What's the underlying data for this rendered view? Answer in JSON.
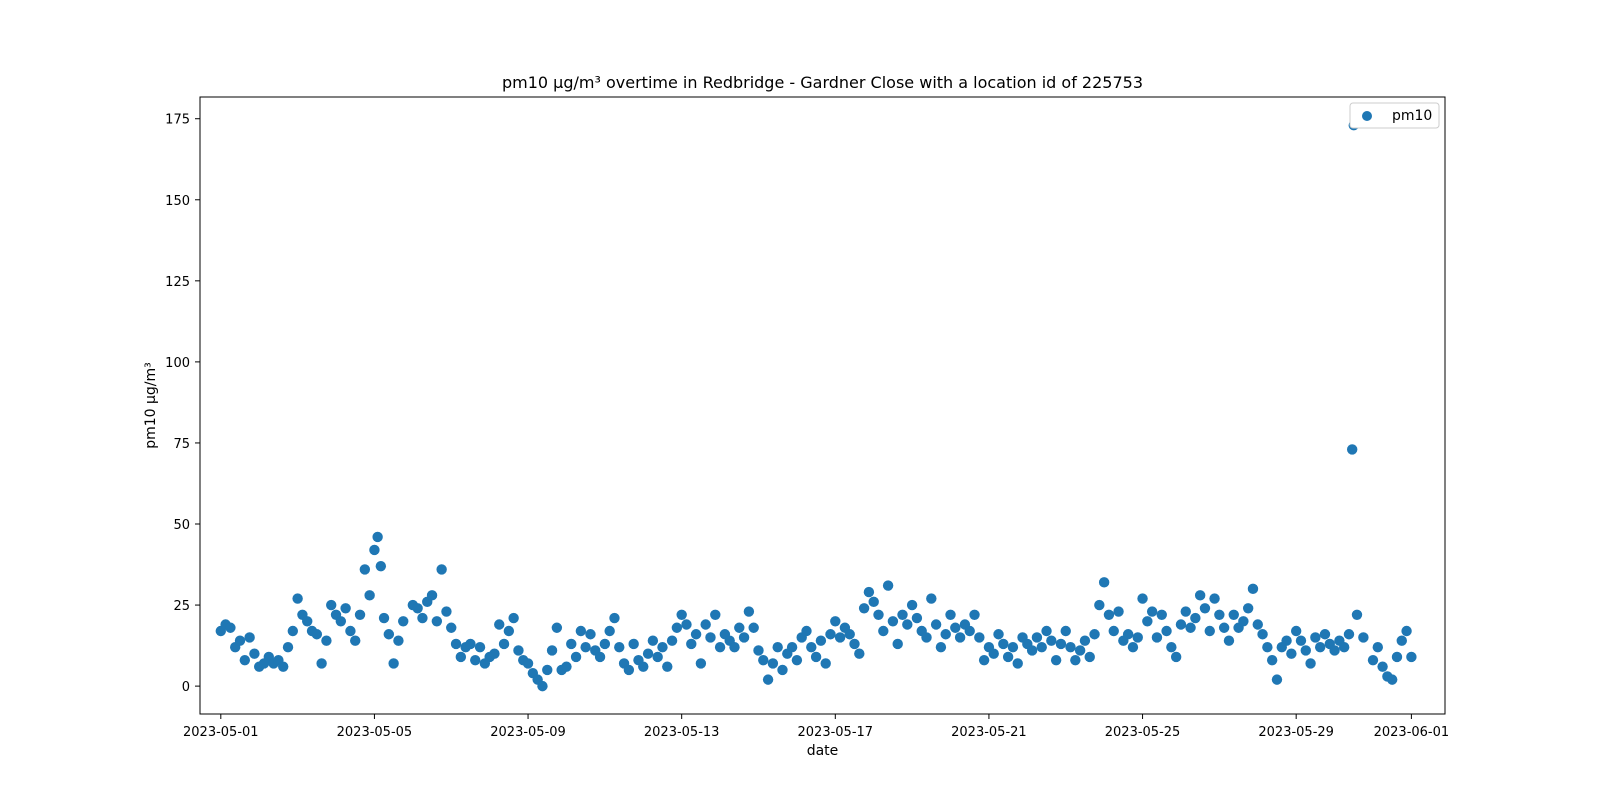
{
  "chart_data": {
    "type": "scatter",
    "title": "pm10 µg/m³ overtime in Redbridge - Gardner Close with a location id of 225753",
    "xlabel": "date",
    "ylabel": "pm10 µg/m³",
    "x_axis_type": "date",
    "xlim": [
      "2023-04-30T11:00",
      "2023-06-01T21:00"
    ],
    "ylim": [
      -8.6,
      181.7
    ],
    "x_ticks": [
      "2023-05-01",
      "2023-05-05",
      "2023-05-09",
      "2023-05-13",
      "2023-05-17",
      "2023-05-21",
      "2023-05-25",
      "2023-05-29",
      "2023-06-01"
    ],
    "y_ticks": [
      0,
      25,
      50,
      75,
      100,
      125,
      150,
      175
    ],
    "grid": false,
    "legend_position": "top-right",
    "series": [
      {
        "name": "pm10",
        "color": "#1f77b4",
        "marker": "circle",
        "points": [
          [
            "2023-05-01T00:00",
            17
          ],
          [
            "2023-05-01T03:00",
            19
          ],
          [
            "2023-05-01T06:00",
            18
          ],
          [
            "2023-05-01T09:00",
            12
          ],
          [
            "2023-05-01T12:00",
            14
          ],
          [
            "2023-05-01T15:00",
            8
          ],
          [
            "2023-05-01T18:00",
            15
          ],
          [
            "2023-05-01T21:00",
            10
          ],
          [
            "2023-05-02T00:00",
            6
          ],
          [
            "2023-05-02T03:00",
            7
          ],
          [
            "2023-05-02T06:00",
            9
          ],
          [
            "2023-05-02T09:00",
            7
          ],
          [
            "2023-05-02T12:00",
            8
          ],
          [
            "2023-05-02T15:00",
            6
          ],
          [
            "2023-05-02T18:00",
            12
          ],
          [
            "2023-05-02T21:00",
            17
          ],
          [
            "2023-05-03T00:00",
            27
          ],
          [
            "2023-05-03T03:00",
            22
          ],
          [
            "2023-05-03T06:00",
            20
          ],
          [
            "2023-05-03T09:00",
            17
          ],
          [
            "2023-05-03T12:00",
            16
          ],
          [
            "2023-05-03T15:00",
            7
          ],
          [
            "2023-05-03T18:00",
            14
          ],
          [
            "2023-05-03T21:00",
            25
          ],
          [
            "2023-05-04T00:00",
            22
          ],
          [
            "2023-05-04T03:00",
            20
          ],
          [
            "2023-05-04T06:00",
            24
          ],
          [
            "2023-05-04T09:00",
            17
          ],
          [
            "2023-05-04T12:00",
            14
          ],
          [
            "2023-05-04T15:00",
            22
          ],
          [
            "2023-05-04T18:00",
            36
          ],
          [
            "2023-05-04T21:00",
            28
          ],
          [
            "2023-05-05T00:00",
            42
          ],
          [
            "2023-05-05T02:00",
            46
          ],
          [
            "2023-05-05T04:00",
            37
          ],
          [
            "2023-05-05T06:00",
            21
          ],
          [
            "2023-05-05T09:00",
            16
          ],
          [
            "2023-05-05T12:00",
            7
          ],
          [
            "2023-05-05T15:00",
            14
          ],
          [
            "2023-05-05T18:00",
            20
          ],
          [
            "2023-05-06T00:00",
            25
          ],
          [
            "2023-05-06T03:00",
            24
          ],
          [
            "2023-05-06T06:00",
            21
          ],
          [
            "2023-05-06T09:00",
            26
          ],
          [
            "2023-05-06T12:00",
            28
          ],
          [
            "2023-05-06T15:00",
            20
          ],
          [
            "2023-05-06T18:00",
            36
          ],
          [
            "2023-05-06T21:00",
            23
          ],
          [
            "2023-05-07T00:00",
            18
          ],
          [
            "2023-05-07T03:00",
            13
          ],
          [
            "2023-05-07T06:00",
            9
          ],
          [
            "2023-05-07T09:00",
            12
          ],
          [
            "2023-05-07T12:00",
            13
          ],
          [
            "2023-05-07T15:00",
            8
          ],
          [
            "2023-05-07T18:00",
            12
          ],
          [
            "2023-05-07T21:00",
            7
          ],
          [
            "2023-05-08T00:00",
            9
          ],
          [
            "2023-05-08T03:00",
            10
          ],
          [
            "2023-05-08T06:00",
            19
          ],
          [
            "2023-05-08T09:00",
            13
          ],
          [
            "2023-05-08T12:00",
            17
          ],
          [
            "2023-05-08T15:00",
            21
          ],
          [
            "2023-05-08T18:00",
            11
          ],
          [
            "2023-05-08T21:00",
            8
          ],
          [
            "2023-05-09T00:00",
            7
          ],
          [
            "2023-05-09T03:00",
            4
          ],
          [
            "2023-05-09T06:00",
            2
          ],
          [
            "2023-05-09T09:00",
            0
          ],
          [
            "2023-05-09T12:00",
            5
          ],
          [
            "2023-05-09T15:00",
            11
          ],
          [
            "2023-05-09T18:00",
            18
          ],
          [
            "2023-05-09T21:00",
            5
          ],
          [
            "2023-05-10T00:00",
            6
          ],
          [
            "2023-05-10T03:00",
            13
          ],
          [
            "2023-05-10T06:00",
            9
          ],
          [
            "2023-05-10T09:00",
            17
          ],
          [
            "2023-05-10T12:00",
            12
          ],
          [
            "2023-05-10T15:00",
            16
          ],
          [
            "2023-05-10T18:00",
            11
          ],
          [
            "2023-05-10T21:00",
            9
          ],
          [
            "2023-05-11T00:00",
            13
          ],
          [
            "2023-05-11T03:00",
            17
          ],
          [
            "2023-05-11T06:00",
            21
          ],
          [
            "2023-05-11T09:00",
            12
          ],
          [
            "2023-05-11T12:00",
            7
          ],
          [
            "2023-05-11T15:00",
            5
          ],
          [
            "2023-05-11T18:00",
            13
          ],
          [
            "2023-05-11T21:00",
            8
          ],
          [
            "2023-05-12T00:00",
            6
          ],
          [
            "2023-05-12T03:00",
            10
          ],
          [
            "2023-05-12T06:00",
            14
          ],
          [
            "2023-05-12T09:00",
            9
          ],
          [
            "2023-05-12T12:00",
            12
          ],
          [
            "2023-05-12T15:00",
            6
          ],
          [
            "2023-05-12T18:00",
            14
          ],
          [
            "2023-05-12T21:00",
            18
          ],
          [
            "2023-05-13T00:00",
            22
          ],
          [
            "2023-05-13T03:00",
            19
          ],
          [
            "2023-05-13T06:00",
            13
          ],
          [
            "2023-05-13T09:00",
            16
          ],
          [
            "2023-05-13T12:00",
            7
          ],
          [
            "2023-05-13T15:00",
            19
          ],
          [
            "2023-05-13T18:00",
            15
          ],
          [
            "2023-05-13T21:00",
            22
          ],
          [
            "2023-05-14T00:00",
            12
          ],
          [
            "2023-05-14T03:00",
            16
          ],
          [
            "2023-05-14T06:00",
            14
          ],
          [
            "2023-05-14T09:00",
            12
          ],
          [
            "2023-05-14T12:00",
            18
          ],
          [
            "2023-05-14T15:00",
            15
          ],
          [
            "2023-05-14T18:00",
            23
          ],
          [
            "2023-05-14T21:00",
            18
          ],
          [
            "2023-05-15T00:00",
            11
          ],
          [
            "2023-05-15T03:00",
            8
          ],
          [
            "2023-05-15T06:00",
            2
          ],
          [
            "2023-05-15T09:00",
            7
          ],
          [
            "2023-05-15T12:00",
            12
          ],
          [
            "2023-05-15T15:00",
            5
          ],
          [
            "2023-05-15T18:00",
            10
          ],
          [
            "2023-05-15T21:00",
            12
          ],
          [
            "2023-05-16T00:00",
            8
          ],
          [
            "2023-05-16T03:00",
            15
          ],
          [
            "2023-05-16T06:00",
            17
          ],
          [
            "2023-05-16T09:00",
            12
          ],
          [
            "2023-05-16T12:00",
            9
          ],
          [
            "2023-05-16T15:00",
            14
          ],
          [
            "2023-05-16T18:00",
            7
          ],
          [
            "2023-05-16T21:00",
            16
          ],
          [
            "2023-05-17T00:00",
            20
          ],
          [
            "2023-05-17T03:00",
            15
          ],
          [
            "2023-05-17T06:00",
            18
          ],
          [
            "2023-05-17T09:00",
            16
          ],
          [
            "2023-05-17T12:00",
            13
          ],
          [
            "2023-05-17T15:00",
            10
          ],
          [
            "2023-05-17T18:00",
            24
          ],
          [
            "2023-05-17T21:00",
            29
          ],
          [
            "2023-05-18T00:00",
            26
          ],
          [
            "2023-05-18T03:00",
            22
          ],
          [
            "2023-05-18T06:00",
            17
          ],
          [
            "2023-05-18T09:00",
            31
          ],
          [
            "2023-05-18T12:00",
            20
          ],
          [
            "2023-05-18T15:00",
            13
          ],
          [
            "2023-05-18T18:00",
            22
          ],
          [
            "2023-05-18T21:00",
            19
          ],
          [
            "2023-05-19T00:00",
            25
          ],
          [
            "2023-05-19T03:00",
            21
          ],
          [
            "2023-05-19T06:00",
            17
          ],
          [
            "2023-05-19T09:00",
            15
          ],
          [
            "2023-05-19T12:00",
            27
          ],
          [
            "2023-05-19T15:00",
            19
          ],
          [
            "2023-05-19T18:00",
            12
          ],
          [
            "2023-05-19T21:00",
            16
          ],
          [
            "2023-05-20T00:00",
            22
          ],
          [
            "2023-05-20T03:00",
            18
          ],
          [
            "2023-05-20T06:00",
            15
          ],
          [
            "2023-05-20T09:00",
            19
          ],
          [
            "2023-05-20T12:00",
            17
          ],
          [
            "2023-05-20T15:00",
            22
          ],
          [
            "2023-05-20T18:00",
            15
          ],
          [
            "2023-05-20T21:00",
            8
          ],
          [
            "2023-05-21T00:00",
            12
          ],
          [
            "2023-05-21T03:00",
            10
          ],
          [
            "2023-05-21T06:00",
            16
          ],
          [
            "2023-05-21T09:00",
            13
          ],
          [
            "2023-05-21T12:00",
            9
          ],
          [
            "2023-05-21T15:00",
            12
          ],
          [
            "2023-05-21T18:00",
            7
          ],
          [
            "2023-05-21T21:00",
            15
          ],
          [
            "2023-05-22T00:00",
            13
          ],
          [
            "2023-05-22T03:00",
            11
          ],
          [
            "2023-05-22T06:00",
            15
          ],
          [
            "2023-05-22T09:00",
            12
          ],
          [
            "2023-05-22T12:00",
            17
          ],
          [
            "2023-05-22T15:00",
            14
          ],
          [
            "2023-05-22T18:00",
            8
          ],
          [
            "2023-05-22T21:00",
            13
          ],
          [
            "2023-05-23T00:00",
            17
          ],
          [
            "2023-05-23T03:00",
            12
          ],
          [
            "2023-05-23T06:00",
            8
          ],
          [
            "2023-05-23T09:00",
            11
          ],
          [
            "2023-05-23T12:00",
            14
          ],
          [
            "2023-05-23T15:00",
            9
          ],
          [
            "2023-05-23T18:00",
            16
          ],
          [
            "2023-05-23T21:00",
            25
          ],
          [
            "2023-05-24T00:00",
            32
          ],
          [
            "2023-05-24T03:00",
            22
          ],
          [
            "2023-05-24T06:00",
            17
          ],
          [
            "2023-05-24T09:00",
            23
          ],
          [
            "2023-05-24T12:00",
            14
          ],
          [
            "2023-05-24T15:00",
            16
          ],
          [
            "2023-05-24T18:00",
            12
          ],
          [
            "2023-05-24T21:00",
            15
          ],
          [
            "2023-05-25T00:00",
            27
          ],
          [
            "2023-05-25T03:00",
            20
          ],
          [
            "2023-05-25T06:00",
            23
          ],
          [
            "2023-05-25T09:00",
            15
          ],
          [
            "2023-05-25T12:00",
            22
          ],
          [
            "2023-05-25T15:00",
            17
          ],
          [
            "2023-05-25T18:00",
            12
          ],
          [
            "2023-05-25T21:00",
            9
          ],
          [
            "2023-05-26T00:00",
            19
          ],
          [
            "2023-05-26T03:00",
            23
          ],
          [
            "2023-05-26T06:00",
            18
          ],
          [
            "2023-05-26T09:00",
            21
          ],
          [
            "2023-05-26T12:00",
            28
          ],
          [
            "2023-05-26T15:00",
            24
          ],
          [
            "2023-05-26T18:00",
            17
          ],
          [
            "2023-05-26T21:00",
            27
          ],
          [
            "2023-05-27T00:00",
            22
          ],
          [
            "2023-05-27T03:00",
            18
          ],
          [
            "2023-05-27T06:00",
            14
          ],
          [
            "2023-05-27T09:00",
            22
          ],
          [
            "2023-05-27T12:00",
            18
          ],
          [
            "2023-05-27T15:00",
            20
          ],
          [
            "2023-05-27T18:00",
            24
          ],
          [
            "2023-05-27T21:00",
            30
          ],
          [
            "2023-05-28T00:00",
            19
          ],
          [
            "2023-05-28T03:00",
            16
          ],
          [
            "2023-05-28T06:00",
            12
          ],
          [
            "2023-05-28T09:00",
            8
          ],
          [
            "2023-05-28T12:00",
            2
          ],
          [
            "2023-05-28T15:00",
            12
          ],
          [
            "2023-05-28T18:00",
            14
          ],
          [
            "2023-05-28T21:00",
            10
          ],
          [
            "2023-05-29T00:00",
            17
          ],
          [
            "2023-05-29T03:00",
            14
          ],
          [
            "2023-05-29T06:00",
            11
          ],
          [
            "2023-05-29T09:00",
            7
          ],
          [
            "2023-05-29T12:00",
            15
          ],
          [
            "2023-05-29T15:00",
            12
          ],
          [
            "2023-05-29T18:00",
            16
          ],
          [
            "2023-05-29T21:00",
            13
          ],
          [
            "2023-05-30T00:00",
            11
          ],
          [
            "2023-05-30T03:00",
            14
          ],
          [
            "2023-05-30T06:00",
            12
          ],
          [
            "2023-05-30T09:00",
            16
          ],
          [
            "2023-05-30T11:00",
            73
          ],
          [
            "2023-05-30T12:00",
            173
          ],
          [
            "2023-05-30T14:00",
            22
          ],
          [
            "2023-05-30T18:00",
            15
          ],
          [
            "2023-05-31T00:00",
            8
          ],
          [
            "2023-05-31T03:00",
            12
          ],
          [
            "2023-05-31T06:00",
            6
          ],
          [
            "2023-05-31T09:00",
            3
          ],
          [
            "2023-05-31T12:00",
            2
          ],
          [
            "2023-05-31T15:00",
            9
          ],
          [
            "2023-05-31T18:00",
            14
          ],
          [
            "2023-05-31T21:00",
            17
          ],
          [
            "2023-06-01T00:00",
            9
          ]
        ]
      }
    ]
  }
}
